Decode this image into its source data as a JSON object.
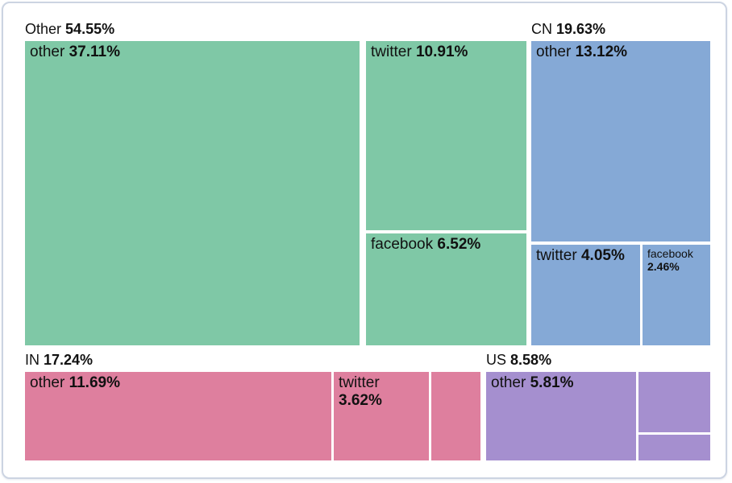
{
  "chart_data": {
    "type": "treemap",
    "description": "Treemap of percentage share grouped by region (Other, CN, IN, US) and split by platform (other, twitter, facebook)",
    "unit": "percent",
    "legend_position": "none",
    "groups": [
      {
        "label": "Other",
        "value": "54.55%",
        "color": "#7fc8a6",
        "children": [
          {
            "name": "other",
            "pct": "37.11%",
            "label_shown": true
          },
          {
            "name": "twitter",
            "pct": "10.91%",
            "label_shown": true
          },
          {
            "name": "facebook",
            "pct": "6.52%",
            "label_shown": true
          }
        ]
      },
      {
        "label": "CN",
        "value": "19.63%",
        "color": "#85a9d6",
        "children": [
          {
            "name": "other",
            "pct": "13.12%",
            "label_shown": true
          },
          {
            "name": "twitter",
            "pct": "4.05%",
            "label_shown": true
          },
          {
            "name": "facebook",
            "pct": "2.46%",
            "label_shown": true
          }
        ]
      },
      {
        "label": "IN",
        "value": "17.24%",
        "color": "#de7f9e",
        "children": [
          {
            "name": "other",
            "pct": "11.69%",
            "label_shown": true
          },
          {
            "name": "twitter",
            "pct": "3.62%",
            "label_shown": true
          },
          {
            "name": "",
            "pct": "",
            "label_shown": false,
            "estimated_pct": "1.93%"
          }
        ]
      },
      {
        "label": "US",
        "value": "8.58%",
        "color": "#a58fcf",
        "children": [
          {
            "name": "other",
            "pct": "5.81%",
            "label_shown": true
          },
          {
            "name": "",
            "pct": "",
            "label_shown": false,
            "estimated_pct": "1.9%"
          },
          {
            "name": "",
            "pct": "",
            "label_shown": false,
            "estimated_pct": "0.85%"
          }
        ]
      }
    ]
  }
}
